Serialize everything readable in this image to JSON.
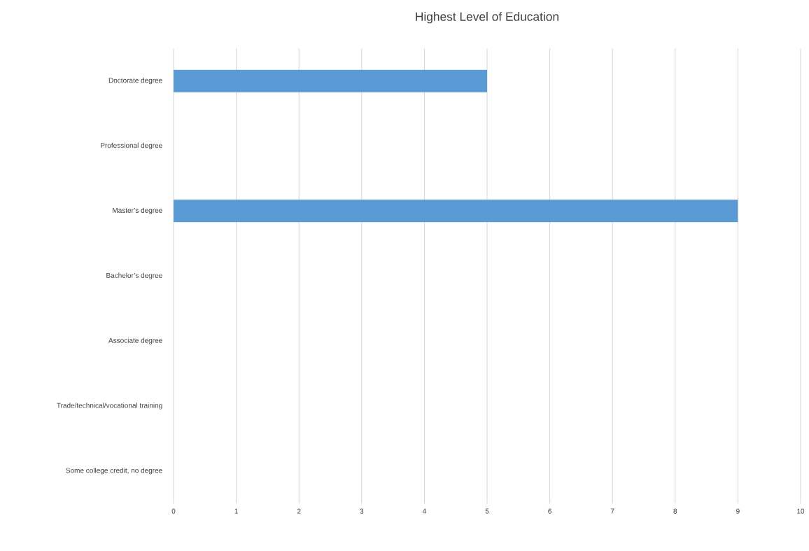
{
  "chart_data": {
    "type": "bar",
    "orientation": "horizontal",
    "title": "Highest Level of Education",
    "categories": [
      "Doctorate degree",
      "Professional degree",
      "Master’s degree",
      "Bachelor’s degree",
      "Associate degree",
      "Trade/technical/vocational training",
      "Some college credit, no degree"
    ],
    "values": [
      5,
      0,
      9,
      0,
      0,
      0,
      0
    ],
    "color": "#5b9bd5",
    "xlim": [
      0,
      10
    ],
    "xticks": [
      0,
      1,
      2,
      3,
      4,
      5,
      6,
      7,
      8,
      9,
      10
    ],
    "grid": "x"
  }
}
